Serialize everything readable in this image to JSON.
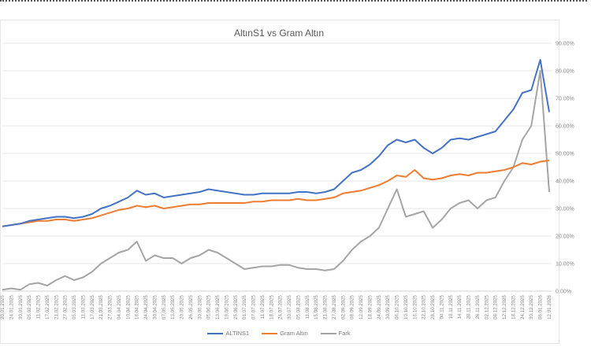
{
  "chart_data": {
    "type": "line",
    "title": "AltınS1 vs Gram Altın",
    "xlabel": "",
    "ylabel": "",
    "ylim": [
      0,
      90
    ],
    "y_axis_position": "right",
    "y_ticks": [
      "0.00%",
      "10.00%",
      "20.00%",
      "30.00%",
      "40.00%",
      "50.00%",
      "60.00%",
      "70.00%",
      "80.00%",
      "90.00%"
    ],
    "grid": true,
    "legend_position": "bottom",
    "x_tick_labels": [
      "20.01.2025",
      "24.01.2025",
      "30.01.2025",
      "05.02.2025",
      "11.02.2025",
      "17.02.2025",
      "21.02.2025",
      "27.02.2025",
      "05.03.2025",
      "11.03.2025",
      "17.03.2025",
      "21.03.2025",
      "27.03.2025",
      "04.04.2025",
      "10.04.2025",
      "16.04.2025",
      "24.04.2025",
      "30.04.2025",
      "07.05.2025",
      "13.05.2025",
      "20.05.2025",
      "26.05.2025",
      "30.05.2025",
      "05.06.2025",
      "13.06.2025",
      "19.06.2025",
      "25.06.2025",
      "01.07.2025",
      "07.07.2025",
      "11.07.2025",
      "18.07.2025",
      "24.07.2025",
      "30.07.2025",
      "05.08.2025",
      "11.08.2025",
      "15.08.2025",
      "21.08.2025",
      "27.08.2025",
      "02.09.2025",
      "08.09.2025",
      "12.09.2025",
      "18.09.2025",
      "24.09.2025",
      "30.09.2025",
      "06.10.2025",
      "10.10.2025",
      "16.10.2025",
      "22.10.2025",
      "28.10.2025",
      "04.11.2025",
      "10.11.2025",
      "14.11.2025",
      "20.11.2025",
      "26.11.2025",
      "02.12.2025",
      "08.12.2025",
      "12.12.2025",
      "18.12.2025",
      "24.12.2025",
      "30.12.2025",
      "06.01.2026",
      "12.01.2026"
    ],
    "series": [
      {
        "name": "ALTINS1",
        "color": "#4472c4",
        "values": [
          23.5,
          24.0,
          24.5,
          25.5,
          26.0,
          26.5,
          27.0,
          27.0,
          26.5,
          27.0,
          28.0,
          30.0,
          31.0,
          32.5,
          34.0,
          36.5,
          35.0,
          35.5,
          34.0,
          34.5,
          35.0,
          35.5,
          36.0,
          37.0,
          36.5,
          36.0,
          35.5,
          35.0,
          35.0,
          35.5,
          35.5,
          35.5,
          35.5,
          36.0,
          36.0,
          35.5,
          36.0,
          37.0,
          40.0,
          43.0,
          44.0,
          46.0,
          49.0,
          53.0,
          55.0,
          54.0,
          55.0,
          52.0,
          50.0,
          52.0,
          55.0,
          55.5,
          55.0,
          56.0,
          57.0,
          58.0,
          62.0,
          66.0,
          72.0,
          73.0,
          84.0,
          65.0
        ]
      },
      {
        "name": "Gram Altın",
        "color": "#ed7d31",
        "values": [
          23.5,
          24.0,
          24.5,
          25.0,
          25.5,
          25.5,
          26.0,
          26.0,
          25.5,
          26.0,
          26.5,
          27.5,
          28.5,
          29.5,
          30.0,
          31.0,
          30.5,
          31.0,
          30.0,
          30.5,
          31.0,
          31.5,
          31.5,
          32.0,
          32.0,
          32.0,
          32.0,
          32.0,
          32.5,
          32.5,
          33.0,
          33.0,
          33.0,
          33.5,
          33.0,
          33.0,
          33.5,
          34.0,
          35.5,
          36.0,
          36.5,
          37.5,
          38.5,
          40.0,
          42.0,
          41.5,
          44.0,
          41.0,
          40.5,
          41.0,
          42.0,
          42.5,
          42.0,
          43.0,
          43.0,
          43.5,
          44.0,
          45.0,
          46.5,
          46.0,
          47.0,
          47.5
        ]
      },
      {
        "name": "Fark",
        "color": "#a5a5a5",
        "values": [
          0.5,
          1.0,
          0.5,
          2.5,
          3.0,
          2.0,
          4.0,
          5.5,
          4.0,
          5.0,
          7.0,
          10.0,
          12.0,
          14.0,
          15.0,
          18.0,
          11.0,
          13.0,
          12.0,
          12.0,
          10.0,
          12.0,
          13.0,
          15.0,
          14.0,
          12.0,
          10.0,
          8.0,
          8.5,
          9.0,
          9.0,
          9.5,
          9.5,
          8.5,
          8.0,
          8.0,
          7.5,
          8.0,
          11.0,
          15.0,
          18.0,
          20.0,
          23.0,
          30.0,
          37.0,
          27.0,
          28.0,
          29.0,
          23.0,
          26.0,
          30.0,
          32.0,
          33.0,
          30.0,
          33.0,
          34.0,
          40.0,
          45.0,
          55.0,
          60.0,
          80.0,
          36.0
        ]
      }
    ]
  },
  "legend": {
    "items": [
      {
        "label": "ALTINS1",
        "color": "#4472c4"
      },
      {
        "label": "Gram Altın",
        "color": "#ed7d31"
      },
      {
        "label": "Fark",
        "color": "#a5a5a5"
      }
    ]
  }
}
